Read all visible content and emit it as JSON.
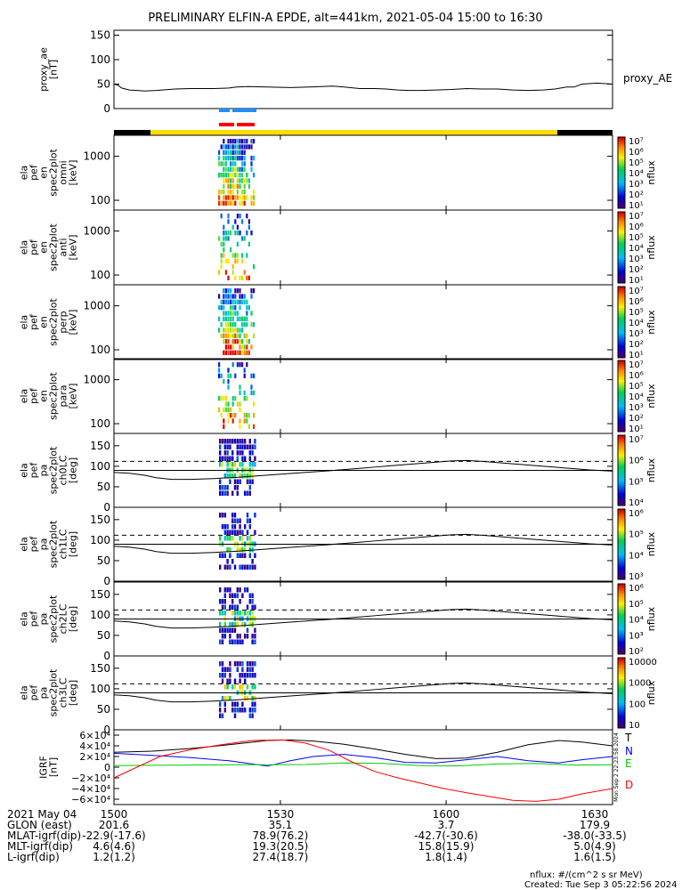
{
  "chart_data": {
    "type": "heatmap",
    "title": "PRELIMINARY ELFIN-A EPDE, alt=441km, 2021-05-04 15:00 to 16:30",
    "colors": {
      "black": "#000000",
      "yellow": "#ffdd00",
      "red": "#ff0000",
      "blue": "#1f8fff",
      "green": "#00cc00"
    },
    "proxy_ae": {
      "ylabel": "proxy_ae\n[nT]",
      "ylim": [
        0,
        160
      ],
      "yticks": [
        "0",
        "50",
        "100",
        "150"
      ],
      "ytick_values": [
        0,
        50,
        100,
        150
      ],
      "label": "proxy_AE",
      "x": [
        15.0,
        15.05,
        15.1,
        15.2,
        15.3,
        15.4,
        15.55,
        15.8,
        16.0,
        16.3,
        16.5,
        16.6,
        16.75,
        17.0,
        17.3,
        17.55,
        17.7,
        17.85,
        18.0,
        18.2,
        18.4,
        18.55,
        18.7,
        18.85,
        19.0,
        19.2,
        19.4,
        19.6,
        19.8,
        20.0,
        20.2,
        20.4,
        20.6,
        20.75,
        20.9,
        21.0,
        21.1,
        21.3,
        21.5
      ],
      "values": [
        50,
        48,
        42,
        38,
        37,
        36,
        37,
        40,
        41,
        41,
        42,
        44,
        45,
        44,
        43,
        44,
        45,
        46,
        44,
        41,
        41,
        40,
        38,
        37,
        37,
        38,
        39,
        41,
        40,
        40,
        38,
        37,
        38,
        40,
        44,
        44,
        50,
        52,
        50
      ]
    },
    "spectra": [
      {
        "ylabel": [
          "ela",
          "pef",
          "en",
          "spec2plot",
          "omni",
          "[keV]"
        ],
        "yticks": [
          "100",
          "1000"
        ],
        "ytick_values": [
          100,
          1000
        ],
        "ylim": [
          60,
          3000
        ],
        "zunit": "nflux",
        "zticks": [
          "10⁷",
          "10⁶",
          "10⁵",
          "10⁴",
          "10³",
          "10²",
          "10¹"
        ]
      },
      {
        "ylabel": [
          "ela",
          "pef",
          "en",
          "spec2plot",
          "anti",
          "[keV]"
        ],
        "yticks": [
          "100",
          "1000"
        ],
        "ytick_values": [
          100,
          1000
        ],
        "ylim": [
          60,
          3000
        ],
        "zunit": "nflux",
        "zticks": [
          "10⁷",
          "10⁶",
          "10⁵",
          "10⁴",
          "10³",
          "10²",
          "10¹"
        ]
      },
      {
        "ylabel": [
          "ela",
          "pef",
          "en",
          "spec2plot",
          "perp",
          "[keV]"
        ],
        "yticks": [
          "100",
          "1000"
        ],
        "ytick_values": [
          100,
          1000
        ],
        "ylim": [
          60,
          3000
        ],
        "zunit": "nflux",
        "zticks": [
          "10⁷",
          "10⁶",
          "10⁵",
          "10⁴",
          "10³",
          "10²",
          "10¹"
        ]
      },
      {
        "ylabel": [
          "ela",
          "pef",
          "en",
          "spec2plot",
          "para",
          "[keV]"
        ],
        "yticks": [
          "100",
          "1000"
        ],
        "ytick_values": [
          100,
          1000
        ],
        "ylim": [
          60,
          3000
        ],
        "zunit": "nflux",
        "zticks": [
          "10⁷",
          "10⁶",
          "10⁵",
          "10⁴",
          "10³",
          "10²",
          "10¹"
        ]
      }
    ],
    "pitch_angle": [
      {
        "ylabel": [
          "ela",
          "pef",
          "pa",
          "spec2plot",
          "ch0LC",
          "[deg]"
        ],
        "yticks": [
          "0",
          "50",
          "100",
          "150"
        ],
        "ytick_values": [
          0,
          50,
          100,
          150
        ],
        "ylim": [
          0,
          180
        ],
        "zunit": "nflux",
        "zticks": [
          "10⁷",
          "10⁶",
          "10⁵",
          "10⁴"
        ]
      },
      {
        "ylabel": [
          "ela",
          "pef",
          "pa",
          "spec2plot",
          "ch1LC",
          "[deg]"
        ],
        "yticks": [
          "0",
          "50",
          "100",
          "150"
        ],
        "ytick_values": [
          0,
          50,
          100,
          150
        ],
        "ylim": [
          0,
          180
        ],
        "zunit": "nflux",
        "zticks": [
          "10⁶",
          "10⁵",
          "10⁴",
          "10³"
        ]
      },
      {
        "ylabel": [
          "ela",
          "pef",
          "pa",
          "spec2plot",
          "ch2LC",
          "[deg]"
        ],
        "yticks": [
          "0",
          "50",
          "100",
          "150"
        ],
        "ytick_values": [
          0,
          50,
          100,
          150
        ],
        "ylim": [
          0,
          180
        ],
        "zunit": "nflux",
        "zticks": [
          "10⁶",
          "10⁵",
          "10⁴",
          "10³",
          "10²"
        ]
      },
      {
        "ylabel": [
          "ela",
          "pef",
          "pa",
          "spec2plot",
          "ch3LC",
          "[deg]"
        ],
        "yticks": [
          "0",
          "50",
          "100",
          "150"
        ],
        "ytick_values": [
          0,
          50,
          100,
          150
        ],
        "ylim": [
          0,
          180
        ],
        "zunit": "nflux",
        "zticks": [
          "10000",
          "1000",
          "100",
          "10"
        ]
      }
    ],
    "losscone": {
      "x": [
        15.0,
        15.2,
        15.4,
        15.55,
        15.75,
        16.0,
        16.3,
        16.6,
        16.9,
        17.2,
        17.5,
        17.8,
        18.0,
        18.2,
        18.4,
        18.6,
        18.8,
        19.0,
        19.2,
        19.4,
        19.6,
        19.8,
        20.0,
        20.2,
        20.4,
        20.6,
        20.8,
        21.0,
        21.2,
        21.5
      ],
      "values": [
        85,
        83,
        78,
        72,
        68,
        68,
        70,
        73,
        77,
        81,
        85,
        89,
        92,
        95,
        98,
        101,
        104,
        107,
        110,
        113,
        114,
        112,
        109,
        106,
        103,
        100,
        97,
        94,
        91,
        88
      ],
      "dashed_level": 112,
      "level_180": 90
    },
    "igrf": {
      "ylabel": [
        "IGRF",
        "[nT]"
      ],
      "yticks": [
        "6×10⁴",
        "4×10⁴",
        "2×10⁴",
        "0",
        "−2×10⁴",
        "−4×10⁴",
        "−6×10⁴"
      ],
      "ytick_values": [
        60000,
        40000,
        20000,
        0,
        -20000,
        -40000,
        -60000
      ],
      "ylim": [
        -70000,
        70000
      ],
      "series": [
        {
          "name": "T",
          "color": "#000000",
          "x": [
            15.0,
            15.5,
            16.0,
            16.5,
            17.0,
            17.3,
            17.6,
            18.0,
            18.4,
            18.8,
            19.2,
            19.6,
            20.0,
            20.4,
            20.8,
            21.1,
            21.5
          ],
          "values": [
            28000,
            30000,
            35000,
            42000,
            50000,
            51000,
            49000,
            43000,
            34000,
            24000,
            16000,
            17000,
            28000,
            42000,
            50000,
            47000,
            40000
          ]
        },
        {
          "name": "N",
          "color": "#0000ff",
          "x": [
            15.0,
            15.5,
            16.0,
            16.5,
            17.0,
            17.3,
            17.6,
            18.0,
            18.4,
            18.8,
            19.2,
            19.6,
            20.0,
            20.4,
            20.8,
            21.1,
            21.5
          ],
          "values": [
            26000,
            22000,
            18000,
            12000,
            2000,
            12000,
            20000,
            24000,
            18000,
            9000,
            8000,
            14000,
            20000,
            12000,
            8000,
            14000,
            20000
          ]
        },
        {
          "name": "E",
          "color": "#00cc00",
          "x": [
            15.0,
            15.5,
            16.0,
            16.5,
            17.0,
            17.5,
            18.0,
            18.5,
            19.0,
            19.5,
            20.0,
            20.5,
            21.0,
            21.5
          ],
          "values": [
            3000,
            3500,
            4000,
            4500,
            4500,
            5000,
            8000,
            7000,
            3000,
            2500,
            6000,
            7000,
            4000,
            4500
          ]
        },
        {
          "name": "D",
          "color": "#ff0000",
          "x": [
            15.0,
            15.3,
            15.6,
            16.0,
            16.4,
            16.8,
            17.2,
            17.5,
            17.8,
            18.1,
            18.4,
            18.7,
            19.0,
            19.3,
            19.6,
            19.9,
            20.2,
            20.5,
            20.8,
            21.1,
            21.5
          ],
          "values": [
            -20000,
            0,
            20000,
            33000,
            42000,
            50000,
            51000,
            45000,
            32000,
            10000,
            -8000,
            -20000,
            -30000,
            -40000,
            -48000,
            -55000,
            -62000,
            -64000,
            -60000,
            -50000,
            -40000
          ]
        }
      ],
      "side_stamp": "Mon Sep 2 22:23:58 2024"
    },
    "xaxis": {
      "xlim": [
        15.0,
        21.5
      ],
      "ticks": [
        {
          "x": 15.0,
          "label": "1500"
        },
        {
          "x": 17.17,
          "label": "1530"
        },
        {
          "x": 19.33,
          "label": "1600"
        },
        {
          "x": 21.5,
          "label": "1630"
        }
      ]
    },
    "ephemeris": {
      "row_labels": [
        "2021 May 04",
        "GLON (east)",
        "MLAT-igrf(dip)",
        "MLT-igrf(dip)",
        "L-igrf(dip)"
      ],
      "rows": [
        [
          "1500",
          "1530",
          "1600",
          "1630"
        ],
        [
          "201.6",
          "35.1",
          "3.7",
          "179.9"
        ],
        [
          "-22.9(-17.6)",
          "78.9(76.2)",
          "-42.7(-30.6)",
          "-38.0(-33.5)"
        ],
        [
          "4.6(4.6)",
          "19.3(20.5)",
          "15.8(15.9)",
          "5.0(4.9)"
        ],
        [
          "1.2(1.2)",
          "27.4(18.7)",
          "1.8(1.4)",
          "1.6(1.5)"
        ]
      ]
    },
    "footer": {
      "units": "nflux: #/(cm^2 s sr MeV)",
      "created": "Created: Tue Sep  3 05:22:56 2024"
    }
  }
}
